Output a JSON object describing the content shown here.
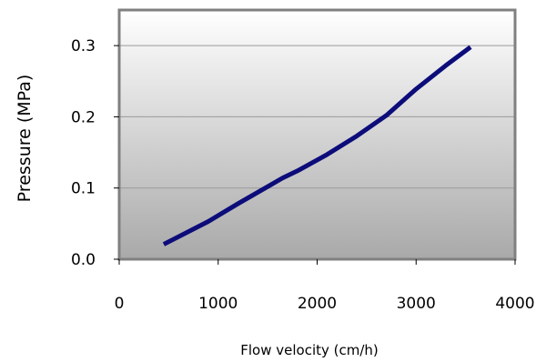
{
  "chart_data": {
    "type": "line",
    "xlabel": "Flow velocity (cm/h)",
    "ylabel": "Pressure (MPa)",
    "xlim": [
      0,
      4000
    ],
    "ylim": [
      0.0,
      0.35
    ],
    "x_ticks": [
      "0",
      "1000",
      "2000",
      "3000",
      "4000"
    ],
    "y_ticks": [
      "0.0",
      "0.1",
      "0.2",
      "0.3"
    ],
    "grid": "horizontal",
    "legend": "none",
    "series": [
      {
        "color": "#0c0c7a",
        "points": [
          {
            "x": 450,
            "y": 0.021
          },
          {
            "x": 900,
            "y": 0.053
          },
          {
            "x": 1200,
            "y": 0.078
          },
          {
            "x": 1500,
            "y": 0.102
          },
          {
            "x": 1650,
            "y": 0.114
          },
          {
            "x": 1800,
            "y": 0.124
          },
          {
            "x": 2100,
            "y": 0.147
          },
          {
            "x": 2400,
            "y": 0.173
          },
          {
            "x": 2700,
            "y": 0.202
          },
          {
            "x": 3000,
            "y": 0.239
          },
          {
            "x": 3300,
            "y": 0.272
          },
          {
            "x": 3550,
            "y": 0.298
          }
        ]
      }
    ]
  }
}
